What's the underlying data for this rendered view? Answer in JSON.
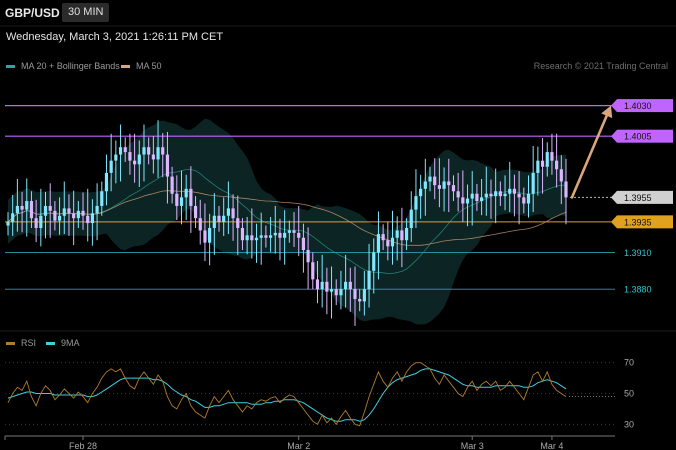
{
  "header": {
    "symbol": "GBP/USD",
    "timeframe": "30 MIN",
    "datetime": "Wednesday, March 3, 2021 1:26:11 PM CET"
  },
  "legend": {
    "items": [
      {
        "label": "MA 20 + Bollinger Bands",
        "color": "#2aa79b"
      },
      {
        "label": "MA 50",
        "color": "#d9a679"
      }
    ],
    "credit": "Research © 2021 Trading Central"
  },
  "rsi_legend": {
    "items": [
      {
        "label": "RSI",
        "color": "#b27b2e"
      },
      {
        "label": "9MA",
        "color": "#3fd0e0"
      }
    ]
  },
  "colors": {
    "candle": "#dcb6ff",
    "candle_up": "#7fe8ff",
    "level_purple": "#c164ff",
    "level_orange": "#e0a020",
    "level_teal": "#2aa1a8",
    "arrow": "#d9a679"
  },
  "chart_data": [
    {
      "type": "candlestick",
      "title": "GBP/USD",
      "ylim": [
        1.3845,
        1.4055
      ],
      "x_tick_labels": [
        "Feb 28",
        "Mar 2",
        "Mar 3",
        "Mar 4"
      ],
      "x_tick_index": [
        16,
        62,
        99,
        116
      ],
      "levels": [
        {
          "value": 1.403,
          "label": "1.4030",
          "style": "resistance"
        },
        {
          "value": 1.4005,
          "label": "1.4005",
          "style": "resistance"
        },
        {
          "value": 1.3955,
          "label": "1.3955",
          "style": "current"
        },
        {
          "value": 1.3935,
          "label": "1.3935",
          "style": "pivot"
        },
        {
          "value": 1.391,
          "label": "1.3910",
          "style": "support"
        },
        {
          "value": 1.388,
          "label": "1.3880",
          "style": "support"
        }
      ],
      "projection": {
        "from": 1.3955,
        "to": 1.403
      },
      "close": [
        1.3935,
        1.3942,
        1.3948,
        1.3945,
        1.3952,
        1.3938,
        1.393,
        1.394,
        1.3948,
        1.3944,
        1.3936,
        1.394,
        1.3946,
        1.3942,
        1.3938,
        1.3944,
        1.394,
        1.3934,
        1.3942,
        1.3948,
        1.396,
        1.3975,
        1.3985,
        1.399,
        1.3996,
        1.3992,
        1.3985,
        1.3982,
        1.399,
        1.3996,
        1.399,
        1.3986,
        1.3996,
        1.399,
        1.3972,
        1.3958,
        1.3948,
        1.3955,
        1.3962,
        1.3948,
        1.3938,
        1.3928,
        1.3918,
        1.393,
        1.394,
        1.3935,
        1.394,
        1.3946,
        1.3938,
        1.393,
        1.392,
        1.3924,
        1.392,
        1.3922,
        1.3924,
        1.3922,
        1.3924,
        1.3926,
        1.3922,
        1.3926,
        1.3928,
        1.3926,
        1.3922,
        1.3912,
        1.3902,
        1.3888,
        1.388,
        1.3886,
        1.3878,
        1.388,
        1.3875,
        1.388,
        1.3886,
        1.388,
        1.3872,
        1.387,
        1.388,
        1.3895,
        1.391,
        1.3925,
        1.392,
        1.3915,
        1.3922,
        1.3928,
        1.392,
        1.393,
        1.3945,
        1.3956,
        1.3962,
        1.3968,
        1.3972,
        1.3965,
        1.3962,
        1.3968,
        1.3965,
        1.396,
        1.3955,
        1.395,
        1.3954,
        1.3958,
        1.3952,
        1.3955,
        1.3958,
        1.3956,
        1.396,
        1.3956,
        1.3958,
        1.3962,
        1.3958,
        1.3955,
        1.395,
        1.3958,
        1.3975,
        1.3985,
        1.398,
        1.3992,
        1.3985,
        1.3978,
        1.3968,
        1.3955
      ]
    },
    {
      "type": "line",
      "title": "RSI",
      "ylim": [
        25,
        75
      ],
      "y_tick_labels": [
        "70",
        "50",
        "30"
      ],
      "series": [
        {
          "name": "RSI",
          "values": [
            44,
            50,
            54,
            52,
            58,
            48,
            42,
            50,
            55,
            52,
            46,
            49,
            53,
            50,
            47,
            51,
            48,
            44,
            50,
            54,
            60,
            64,
            66,
            64,
            66,
            60,
            55,
            53,
            60,
            64,
            60,
            56,
            62,
            58,
            48,
            42,
            40,
            46,
            50,
            42,
            38,
            36,
            34,
            42,
            48,
            44,
            48,
            52,
            46,
            42,
            38,
            42,
            40,
            44,
            46,
            45,
            47,
            48,
            44,
            47,
            49,
            48,
            44,
            40,
            36,
            32,
            30,
            36,
            31,
            34,
            30,
            35,
            39,
            34,
            30,
            29,
            38,
            48,
            56,
            64,
            58,
            54,
            60,
            64,
            58,
            64,
            68,
            70,
            70,
            68,
            66,
            60,
            56,
            62,
            58,
            54,
            50,
            48,
            54,
            58,
            52,
            56,
            58,
            55,
            58,
            52,
            54,
            58,
            54,
            50,
            46,
            54,
            62,
            64,
            58,
            64,
            56,
            52,
            50,
            48
          ]
        },
        {
          "name": "9MA",
          "values": [
            47,
            48,
            49,
            50,
            51,
            51,
            50,
            50,
            50,
            50,
            49,
            49,
            49,
            49,
            49,
            49,
            49,
            48,
            48,
            49,
            51,
            53,
            55,
            57,
            59,
            60,
            60,
            60,
            60,
            60,
            60,
            59,
            59,
            58,
            56,
            53,
            51,
            49,
            48,
            46,
            45,
            43,
            41,
            41,
            42,
            42,
            43,
            44,
            44,
            44,
            44,
            44,
            43,
            43,
            43,
            44,
            44,
            45,
            45,
            46,
            46,
            46,
            45,
            44,
            42,
            40,
            38,
            36,
            34,
            33,
            32,
            32,
            33,
            33,
            33,
            32,
            33,
            36,
            40,
            45,
            50,
            54,
            57,
            59,
            60,
            61,
            62,
            63,
            65,
            66,
            66,
            65,
            64,
            63,
            62,
            60,
            58,
            56,
            55,
            55,
            54,
            54,
            54,
            54,
            55,
            55,
            55,
            55,
            55,
            55,
            54,
            54,
            55,
            57,
            58,
            59,
            58,
            57,
            55,
            53
          ]
        }
      ]
    }
  ]
}
